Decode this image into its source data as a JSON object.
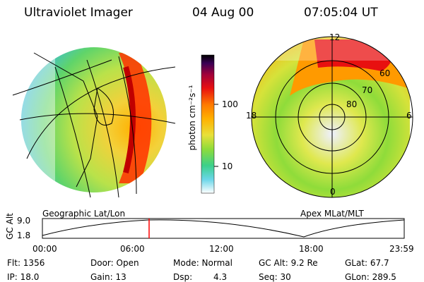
{
  "header": {
    "instrument": "Ultraviolet Imager",
    "date": "04 Aug 00",
    "time": "07:05:04 UT"
  },
  "colorbar": {
    "unit_label": "photon cm⁻²s⁻¹",
    "tick_100": "100",
    "tick_10": "10"
  },
  "left_panel": {
    "caption": "Geographic Lat/Lon"
  },
  "right_panel": {
    "caption": "Apex MLat/MLT",
    "mlt_labels": {
      "top": "12",
      "left": "18",
      "right": "6",
      "bottom": "0"
    },
    "lat_labels": [
      "60",
      "70",
      "80"
    ]
  },
  "timeline": {
    "ylabel": "GC Alt",
    "ymax": "9.0",
    "ymin": "1.8",
    "ticks": [
      "00:00",
      "06:00",
      "12:00",
      "18:00",
      "23:59"
    ],
    "current_fraction": 0.295
  },
  "info": {
    "flt": "Flt: 1356",
    "ip": "IP: 18.0",
    "door": "Door: Open",
    "gain": "Gain: 13",
    "mode": "Mode: Normal",
    "dsp_label": "Dsp:",
    "dsp_value": "4.3",
    "gcalt": "GC Alt: 9.2 Re",
    "seq": "Seq: 30",
    "glat": "GLat: 67.7",
    "glon": "GLon: 289.5"
  },
  "colors": {
    "red_marker": "#ff0000"
  }
}
